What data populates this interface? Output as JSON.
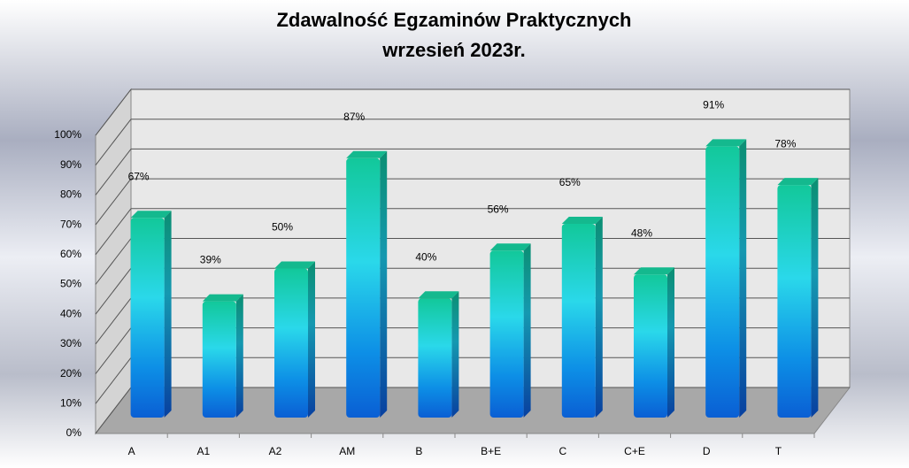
{
  "chart_data": {
    "type": "bar3d",
    "title": "Zdawalność Egzaminów Praktycznych",
    "subtitle": "wrzesień 2023r.",
    "categories": [
      "A",
      "A1",
      "A2",
      "AM",
      "B",
      "B+E",
      "C",
      "C+E",
      "D",
      "T"
    ],
    "values": [
      67,
      39,
      50,
      87,
      40,
      56,
      65,
      48,
      91,
      78
    ],
    "value_labels": [
      "67%",
      "39%",
      "50%",
      "87%",
      "40%",
      "56%",
      "65%",
      "48%",
      "91%",
      "78%"
    ],
    "ylim": [
      0,
      100
    ],
    "yticks": [
      {
        "value": 0,
        "label": "0%"
      },
      {
        "value": 10,
        "label": "10%"
      },
      {
        "value": 20,
        "label": "20%"
      },
      {
        "value": 30,
        "label": "30%"
      },
      {
        "value": 40,
        "label": "40%"
      },
      {
        "value": 50,
        "label": "50%"
      },
      {
        "value": 60,
        "label": "60%"
      },
      {
        "value": 70,
        "label": "70%"
      },
      {
        "value": 80,
        "label": "80%"
      },
      {
        "value": 90,
        "label": "90%"
      },
      {
        "value": 100,
        "label": "100%"
      }
    ],
    "grid": true
  }
}
